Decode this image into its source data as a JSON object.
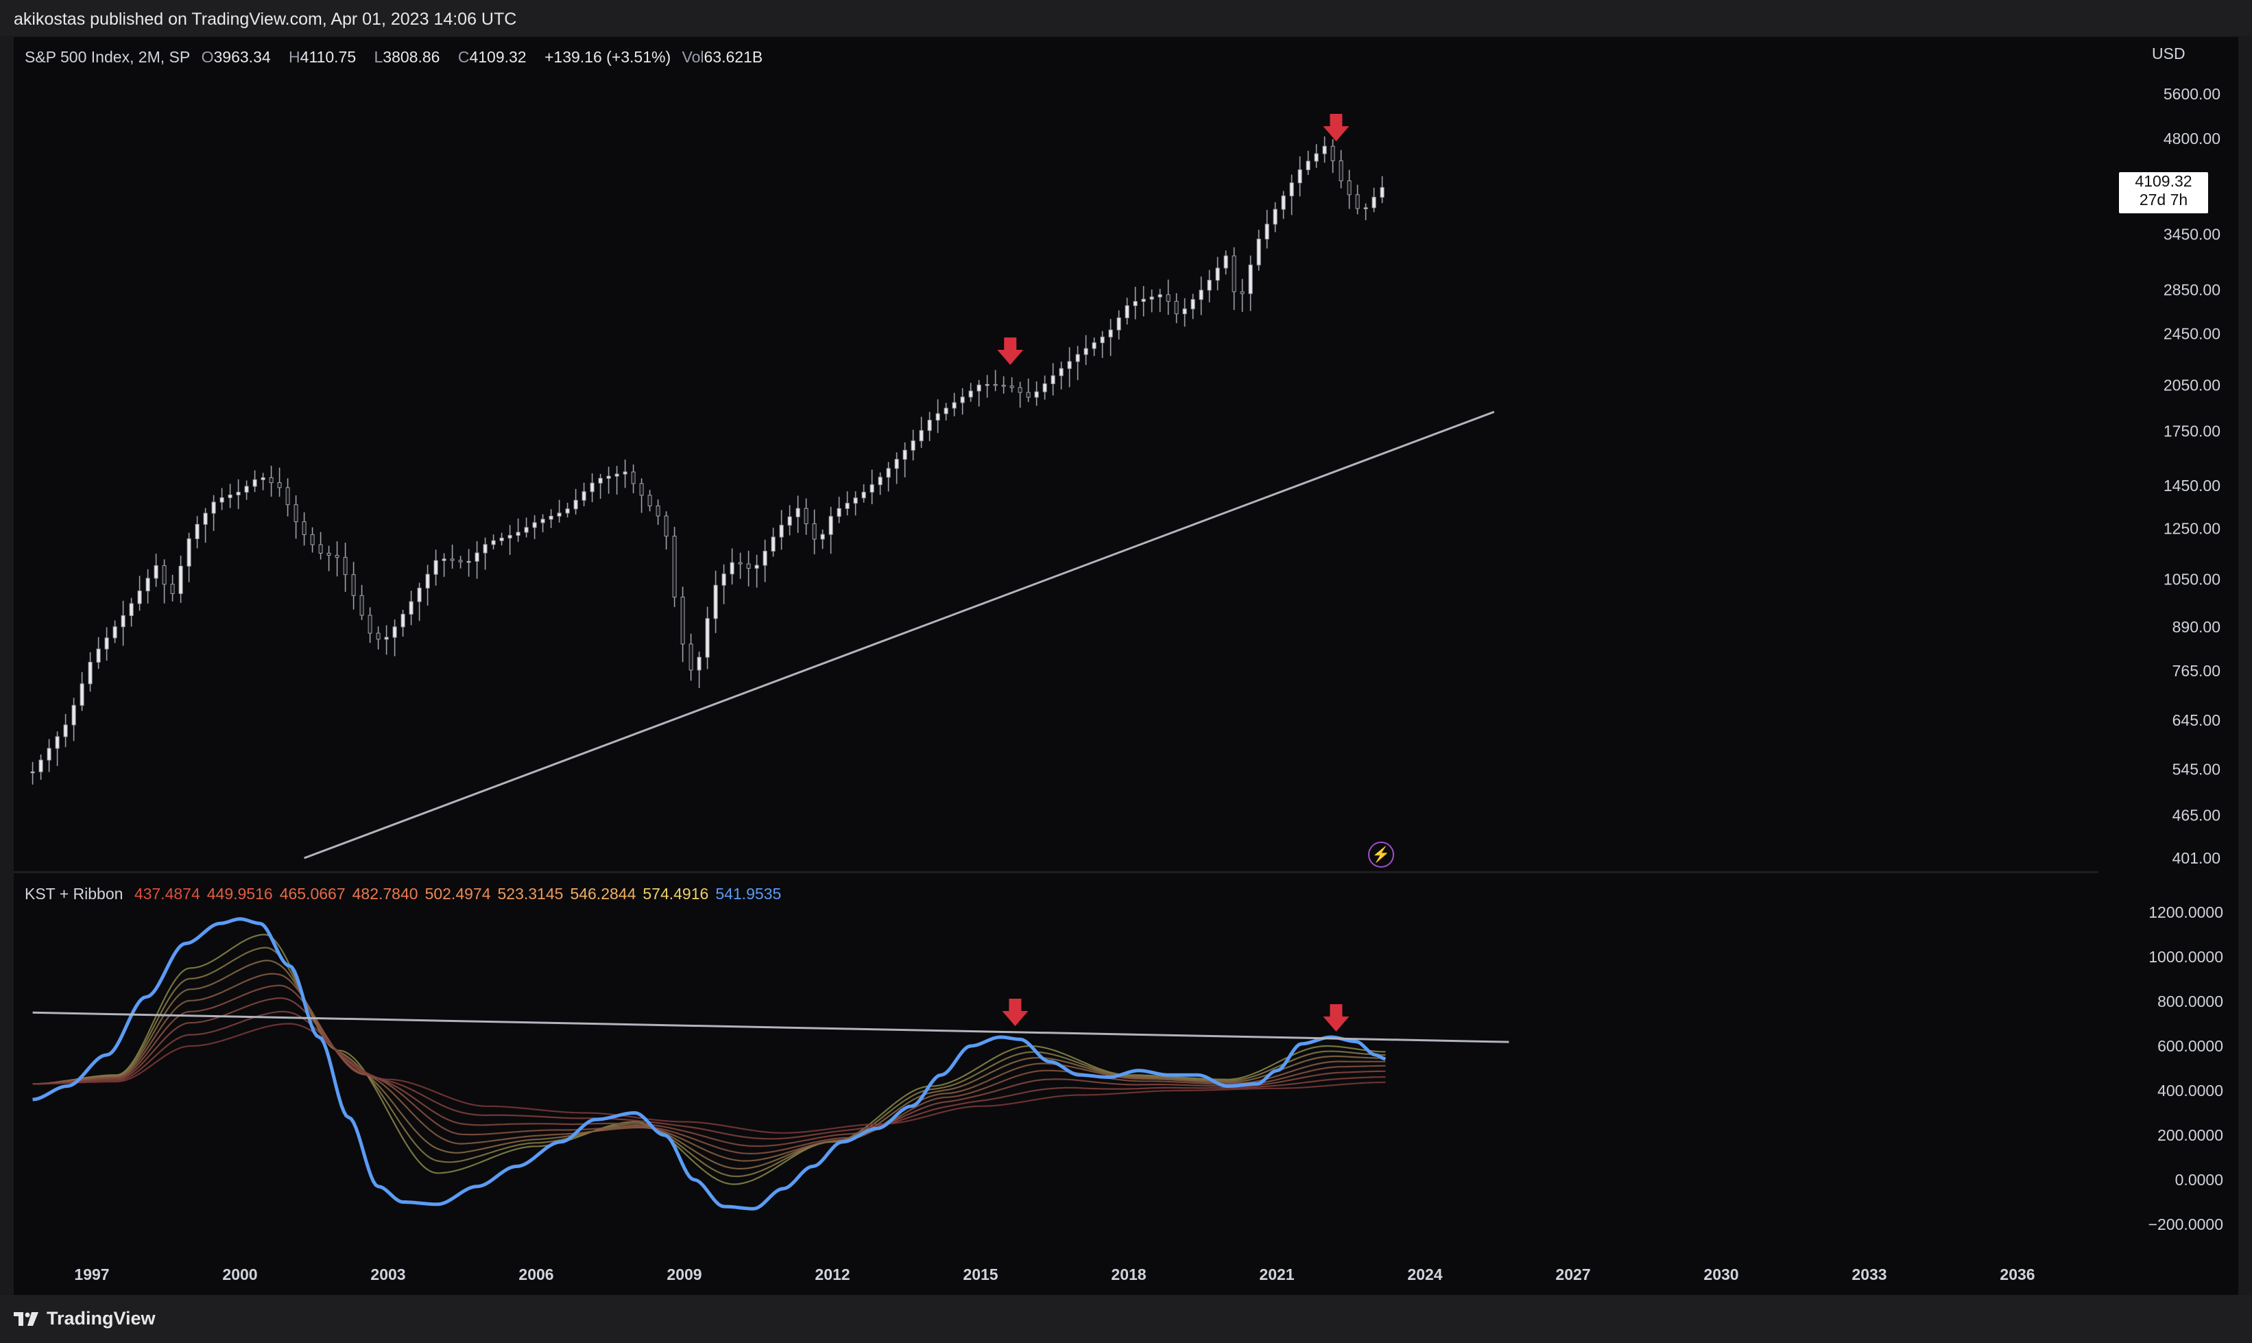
{
  "header": {
    "publish_line": "akikostas published on TradingView.com, Apr 01, 2023 14:06 UTC"
  },
  "price_legend": {
    "symbol": "S&P 500 Index, 2M, SP",
    "open_label": "O",
    "open": "3963.34",
    "high_label": "H",
    "high": "4110.75",
    "low_label": "L",
    "low": "3808.86",
    "close_label": "C",
    "close": "4109.32",
    "change": "+139.16 (+3.51%)",
    "vol_label": "Vol",
    "vol": "63.621B"
  },
  "price_badge": {
    "price": "4109.32",
    "countdown": "27d 7h"
  },
  "kst_legend": {
    "title": "KST + Ribbon",
    "values": [
      {
        "text": "437.4874",
        "color": "#e0503c"
      },
      {
        "text": "449.9516",
        "color": "#e55e42"
      },
      {
        "text": "465.0667",
        "color": "#e86b48"
      },
      {
        "text": "482.7840",
        "color": "#ec7a4e"
      },
      {
        "text": "502.4974",
        "color": "#ee8a54"
      },
      {
        "text": "523.3145",
        "color": "#f09a5a"
      },
      {
        "text": "546.2844",
        "color": "#f2b060"
      },
      {
        "text": "574.4916",
        "color": "#f0d066"
      },
      {
        "text": "541.9535",
        "color": "#5b9cf5"
      }
    ]
  },
  "footer": {
    "brand": "TradingView"
  },
  "chart_data": [
    {
      "type": "candlestick",
      "title": "S&P 500 Index, 2M, SP",
      "y_scale": "log",
      "y_unit_label": "USD",
      "y_ticks": [
        "5600.00",
        "4800.00",
        "3450.00",
        "2850.00",
        "2450.00",
        "2050.00",
        "1750.00",
        "1450.00",
        "1250.00",
        "1050.00",
        "890.00",
        "765.00",
        "645.00",
        "545.00",
        "465.00",
        "401.00"
      ],
      "x_ticks": [
        "1997",
        "2000",
        "2003",
        "2006",
        "2009",
        "2012",
        "2015",
        "2018",
        "2021",
        "2024",
        "2027",
        "2030",
        "2033",
        "2036"
      ],
      "close_path": [
        [
          1995.8,
          540
        ],
        [
          1996.5,
          640
        ],
        [
          1997.0,
          800
        ],
        [
          1997.7,
          940
        ],
        [
          1998.3,
          1100
        ],
        [
          1998.6,
          980
        ],
        [
          1999.0,
          1230
        ],
        [
          1999.5,
          1380
        ],
        [
          2000.0,
          1420
        ],
        [
          2000.4,
          1500
        ],
        [
          2000.8,
          1440
        ],
        [
          2001.2,
          1250
        ],
        [
          2001.6,
          1150
        ],
        [
          2002.0,
          1130
        ],
        [
          2002.4,
          950
        ],
        [
          2002.7,
          850
        ],
        [
          2003.0,
          860
        ],
        [
          2003.5,
          980
        ],
        [
          2004.0,
          1130
        ],
        [
          2004.6,
          1110
        ],
        [
          2005.0,
          1190
        ],
        [
          2005.6,
          1230
        ],
        [
          2006.0,
          1280
        ],
        [
          2006.6,
          1330
        ],
        [
          2007.2,
          1480
        ],
        [
          2007.8,
          1520
        ],
        [
          2008.2,
          1380
        ],
        [
          2008.6,
          1270
        ],
        [
          2008.9,
          870
        ],
        [
          2009.2,
          740
        ],
        [
          2009.6,
          1020
        ],
        [
          2010.0,
          1120
        ],
        [
          2010.4,
          1080
        ],
        [
          2010.9,
          1250
        ],
        [
          2011.3,
          1340
        ],
        [
          2011.7,
          1180
        ],
        [
          2012.0,
          1320
        ],
        [
          2012.6,
          1410
        ],
        [
          2013.0,
          1500
        ],
        [
          2013.6,
          1680
        ],
        [
          2014.0,
          1830
        ],
        [
          2014.6,
          1960
        ],
        [
          2015.0,
          2060
        ],
        [
          2015.6,
          2040
        ],
        [
          2016.0,
          1960
        ],
        [
          2016.5,
          2130
        ],
        [
          2017.0,
          2290
        ],
        [
          2017.6,
          2460
        ],
        [
          2018.0,
          2720
        ],
        [
          2018.7,
          2810
        ],
        [
          2019.0,
          2600
        ],
        [
          2019.6,
          2920
        ],
        [
          2020.0,
          3230
        ],
        [
          2020.2,
          2650
        ],
        [
          2020.6,
          3360
        ],
        [
          2021.0,
          3800
        ],
        [
          2021.5,
          4350
        ],
        [
          2022.0,
          4700
        ],
        [
          2022.3,
          4150
        ],
        [
          2022.7,
          3700
        ],
        [
          2023.0,
          3950
        ],
        [
          2023.2,
          4109
        ]
      ],
      "arrows_at": [
        2015.6,
        2022.2
      ],
      "trendline": {
        "from": [
          2001.3,
          401
        ],
        "to": [
          2025.4,
          1870
        ]
      }
    },
    {
      "type": "line",
      "title": "KST + Ribbon",
      "y_ticks": [
        "1200.0000",
        "1000.0000",
        "800.0000",
        "600.0000",
        "400.0000",
        "200.0000",
        "0.0000",
        "−200.0000"
      ],
      "ylim": [
        -320,
        1300
      ],
      "series": [
        {
          "color": "#5b9cf5",
          "values": [
            [
              1995.8,
              360
            ],
            [
              1996.5,
              420
            ],
            [
              1997.3,
              560
            ],
            [
              1998.1,
              820
            ],
            [
              1998.9,
              1060
            ],
            [
              1999.6,
              1150
            ],
            [
              2000.0,
              1170
            ],
            [
              2000.4,
              1150
            ],
            [
              2001.0,
              960
            ],
            [
              2001.6,
              640
            ],
            [
              2002.2,
              280
            ],
            [
              2002.8,
              -30
            ],
            [
              2003.3,
              -100
            ],
            [
              2004.0,
              -110
            ],
            [
              2004.8,
              -30
            ],
            [
              2005.6,
              60
            ],
            [
              2006.5,
              170
            ],
            [
              2007.2,
              270
            ],
            [
              2008.0,
              300
            ],
            [
              2008.6,
              200
            ],
            [
              2009.2,
              0
            ],
            [
              2009.8,
              -120
            ],
            [
              2010.4,
              -130
            ],
            [
              2011.0,
              -40
            ],
            [
              2011.6,
              60
            ],
            [
              2012.2,
              170
            ],
            [
              2012.9,
              230
            ],
            [
              2013.6,
              330
            ],
            [
              2014.2,
              470
            ],
            [
              2014.8,
              600
            ],
            [
              2015.4,
              640
            ],
            [
              2015.8,
              630
            ],
            [
              2016.4,
              530
            ],
            [
              2017.0,
              470
            ],
            [
              2017.6,
              460
            ],
            [
              2018.2,
              490
            ],
            [
              2018.8,
              470
            ],
            [
              2019.4,
              470
            ],
            [
              2020.0,
              420
            ],
            [
              2020.6,
              430
            ],
            [
              2021.0,
              490
            ],
            [
              2021.5,
              610
            ],
            [
              2022.1,
              640
            ],
            [
              2022.6,
              620
            ],
            [
              2023.0,
              560
            ],
            [
              2023.2,
              542
            ]
          ]
        },
        {
          "color": "#f0d066",
          "values": [
            [
              1995.8,
              430
            ],
            [
              1997.5,
              470
            ],
            [
              1999.0,
              950
            ],
            [
              2000.5,
              1100
            ],
            [
              2002.0,
              580
            ],
            [
              2004.0,
              30
            ],
            [
              2006.0,
              150
            ],
            [
              2008.0,
              260
            ],
            [
              2010.0,
              -20
            ],
            [
              2012.0,
              170
            ],
            [
              2014.0,
              420
            ],
            [
              2016.0,
              600
            ],
            [
              2018.0,
              470
            ],
            [
              2020.0,
              450
            ],
            [
              2022.0,
              600
            ],
            [
              2023.2,
              574
            ]
          ]
        },
        {
          "color": "#f09a5a",
          "values": [
            [
              1995.8,
              430
            ],
            [
              1997.5,
              460
            ],
            [
              1999.0,
              780
            ],
            [
              2000.8,
              900
            ],
            [
              2002.5,
              470
            ],
            [
              2004.5,
              180
            ],
            [
              2006.5,
              210
            ],
            [
              2008.2,
              230
            ],
            [
              2010.3,
              100
            ],
            [
              2012.3,
              180
            ],
            [
              2014.3,
              380
            ],
            [
              2016.3,
              510
            ],
            [
              2018.3,
              450
            ],
            [
              2020.3,
              430
            ],
            [
              2022.3,
              520
            ],
            [
              2023.2,
              523
            ]
          ]
        },
        {
          "color": "#e0503c",
          "values": [
            [
              1995.8,
              430
            ],
            [
              1997.5,
              440
            ],
            [
              1999.0,
              600
            ],
            [
              2001.0,
              700
            ],
            [
              2003.0,
              450
            ],
            [
              2005.0,
              330
            ],
            [
              2007.0,
              300
            ],
            [
              2009.0,
              260
            ],
            [
              2011.0,
              210
            ],
            [
              2013.0,
              250
            ],
            [
              2015.0,
              330
            ],
            [
              2017.0,
              380
            ],
            [
              2019.0,
              400
            ],
            [
              2021.0,
              410
            ],
            [
              2023.2,
              437
            ]
          ]
        }
      ],
      "trendline": {
        "from": [
          1995.8,
          750
        ],
        "to": [
          2025.7,
          618
        ]
      },
      "arrows_at": [
        2015.7,
        2022.2
      ]
    }
  ]
}
